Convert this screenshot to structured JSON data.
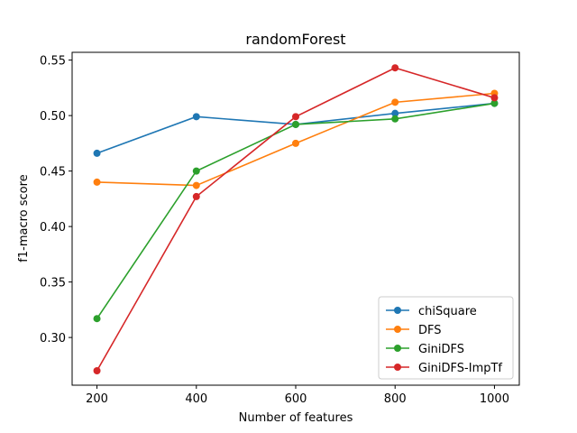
{
  "chart_data": {
    "type": "line",
    "title": "randomForest",
    "xlabel": "Number of features",
    "ylabel": "f1-macro score",
    "x": [
      200,
      400,
      600,
      800,
      1000
    ],
    "xticks": [
      "200",
      "400",
      "600",
      "800",
      "1000"
    ],
    "yticks": [
      "0.30",
      "0.35",
      "0.40",
      "0.45",
      "0.50",
      "0.55"
    ],
    "xlim": [
      150,
      1050
    ],
    "ylim": [
      0.257,
      0.557
    ],
    "grid": false,
    "legend_position": "lower-right",
    "series": [
      {
        "name": "chiSquare",
        "color": "#1f77b4",
        "values": [
          0.466,
          0.499,
          0.492,
          0.502,
          0.511
        ]
      },
      {
        "name": "DFS",
        "color": "#ff7f0e",
        "values": [
          0.44,
          0.437,
          0.475,
          0.512,
          0.52
        ]
      },
      {
        "name": "GiniDFS",
        "color": "#2ca02c",
        "values": [
          0.317,
          0.45,
          0.492,
          0.497,
          0.511
        ]
      },
      {
        "name": "GiniDFS-ImpTf",
        "color": "#d62728",
        "values": [
          0.27,
          0.427,
          0.499,
          0.543,
          0.516
        ]
      }
    ]
  }
}
